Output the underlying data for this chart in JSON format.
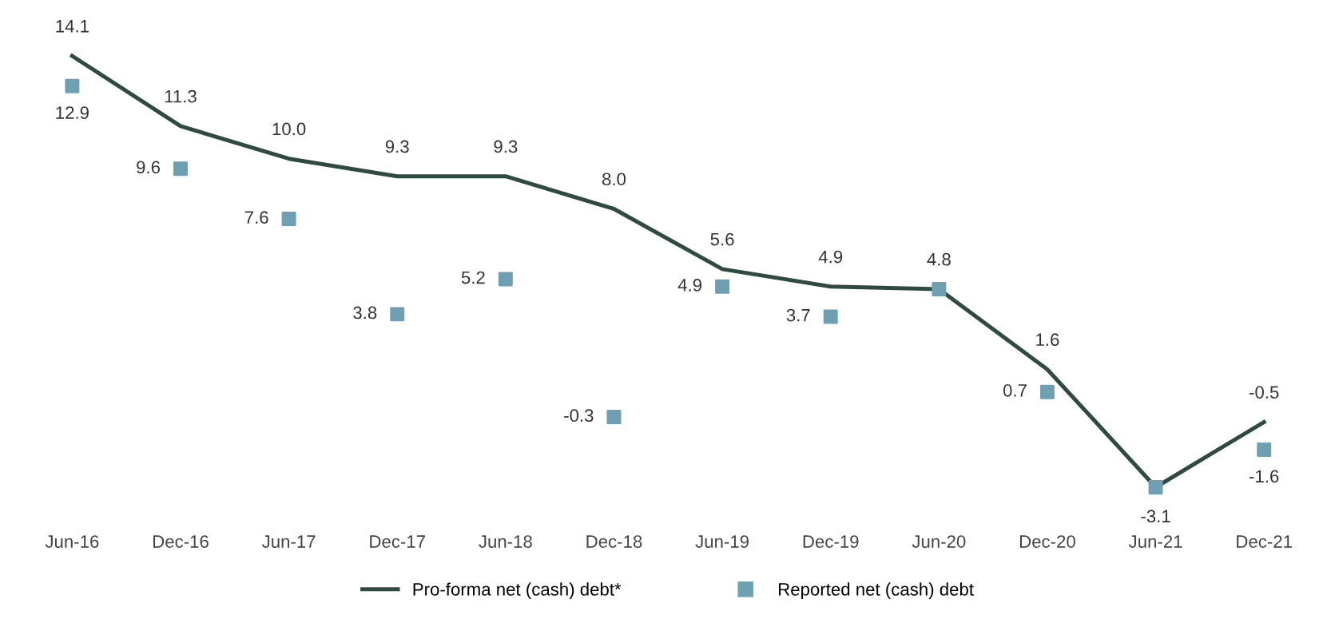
{
  "chart_data": {
    "type": "line",
    "categories": [
      "Jun-16",
      "Dec-16",
      "Jun-17",
      "Dec-17",
      "Jun-18",
      "Dec-18",
      "Jun-19",
      "Dec-19",
      "Jun-20",
      "Dec-20",
      "Jun-21",
      "Dec-21"
    ],
    "series": [
      {
        "name": "Pro-forma net (cash) debt*",
        "color": "#2f4a40",
        "values": [
          14.1,
          11.3,
          10.0,
          9.3,
          9.3,
          8.0,
          5.6,
          4.9,
          4.8,
          1.6,
          -3.1,
          -0.5
        ],
        "value_labels": [
          "14.1",
          "11.3",
          "10.0",
          "9.3",
          "9.3",
          "8.0",
          "5.6",
          "4.9",
          "4.8",
          "1.6",
          "-3.1",
          "-0.5"
        ]
      },
      {
        "name": "Reported net (cash) debt",
        "type": "scatter",
        "color": "#6f9fb3",
        "marker": "square",
        "values": [
          12.9,
          9.6,
          7.6,
          3.8,
          5.2,
          -0.3,
          4.9,
          3.7,
          4.8,
          0.7,
          -3.1,
          -1.6
        ],
        "value_labels": [
          "12.9",
          "9.6",
          "7.6",
          "3.8",
          "5.2",
          "-0.3",
          "4.9",
          "3.7",
          null,
          "0.7",
          null,
          "-1.6"
        ]
      }
    ],
    "legend": "bottom",
    "tick_labels": "x"
  }
}
